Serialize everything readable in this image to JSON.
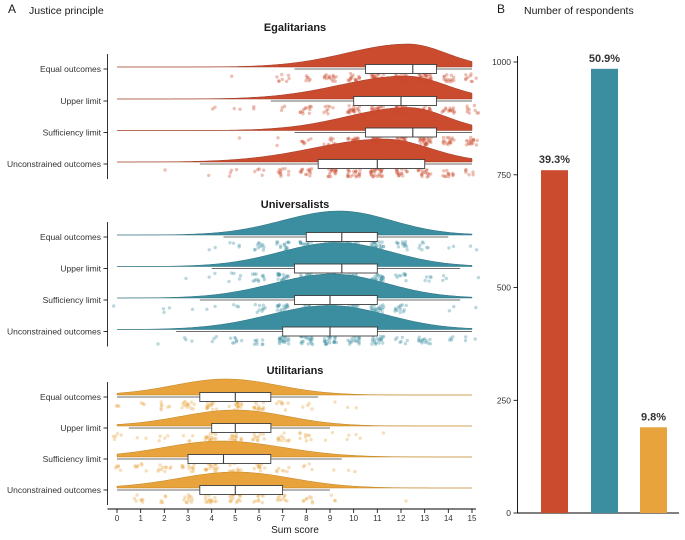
{
  "figure": {
    "panelA": {
      "letter": "A",
      "title": "Justice principle"
    },
    "panelB": {
      "letter": "B",
      "title": "Number of respondents"
    }
  },
  "chart_data": [
    {
      "type": "raincloud",
      "panel": "A",
      "title": "Justice principle",
      "xlabel": "Sum score",
      "xlim": [
        0,
        15
      ],
      "xticks": [
        0,
        1,
        2,
        3,
        4,
        5,
        6,
        7,
        8,
        9,
        10,
        11,
        12,
        13,
        14,
        15
      ],
      "categories": [
        "Equal outcomes",
        "Upper limit",
        "Sufficiency limit",
        "Unconstrained outcomes"
      ],
      "groups": [
        {
          "name": "Egalitarians",
          "color": "#cb4b2f",
          "stroke": "#9e3a24",
          "rows": [
            {
              "category": "Equal outcomes",
              "q1": 10.5,
              "median": 12.5,
              "q3": 13.5,
              "whisker_low": 7.5,
              "whisker_high": 15,
              "peak": 12.3,
              "spread_left": 2.6,
              "spread_right": 1.6,
              "n": 150
            },
            {
              "category": "Upper limit",
              "q1": 10.0,
              "median": 12.0,
              "q3": 13.5,
              "whisker_low": 6.5,
              "whisker_high": 15,
              "peak": 12.2,
              "spread_left": 2.8,
              "spread_right": 1.7,
              "n": 150
            },
            {
              "category": "Sufficiency limit",
              "q1": 10.5,
              "median": 12.5,
              "q3": 13.5,
              "whisker_low": 7.5,
              "whisker_high": 15,
              "peak": 12.3,
              "spread_left": 2.6,
              "spread_right": 1.6,
              "n": 150
            },
            {
              "category": "Unconstrained outcomes",
              "q1": 8.5,
              "median": 11.0,
              "q3": 13.0,
              "whisker_low": 3.5,
              "whisker_high": 15,
              "peak": 11.3,
              "spread_left": 3.0,
              "spread_right": 1.9,
              "n": 150
            }
          ]
        },
        {
          "name": "Universalists",
          "color": "#3b8ea0",
          "stroke": "#2c6f7d",
          "rows": [
            {
              "category": "Equal outcomes",
              "q1": 8.0,
              "median": 9.5,
              "q3": 11.0,
              "whisker_low": 4.5,
              "whisker_high": 14.0,
              "peak": 9.4,
              "spread_left": 2.4,
              "spread_right": 2.2,
              "n": 150
            },
            {
              "category": "Upper limit",
              "q1": 7.5,
              "median": 9.5,
              "q3": 11.0,
              "whisker_low": 4.0,
              "whisker_high": 14.5,
              "peak": 9.3,
              "spread_left": 2.4,
              "spread_right": 2.3,
              "n": 150
            },
            {
              "category": "Sufficiency limit",
              "q1": 7.5,
              "median": 9.0,
              "q3": 11.0,
              "whisker_low": 3.5,
              "whisker_high": 14.5,
              "peak": 9.1,
              "spread_left": 2.5,
              "spread_right": 2.3,
              "n": 150
            },
            {
              "category": "Unconstrained outcomes",
              "q1": 7.0,
              "median": 9.0,
              "q3": 11.0,
              "whisker_low": 2.5,
              "whisker_high": 15.0,
              "peak": 9.0,
              "spread_left": 2.6,
              "spread_right": 2.4,
              "n": 150
            }
          ]
        },
        {
          "name": "Utilitarians",
          "color": "#e8a33c",
          "stroke": "#bf831f",
          "rows": [
            {
              "category": "Equal outcomes",
              "q1": 3.5,
              "median": 5.0,
              "q3": 6.5,
              "whisker_low": 0,
              "whisker_high": 8.5,
              "peak": 4.6,
              "spread_left": 2.2,
              "spread_right": 2.2,
              "n": 85
            },
            {
              "category": "Upper limit",
              "q1": 4.0,
              "median": 5.0,
              "q3": 6.5,
              "whisker_low": 0.5,
              "whisker_high": 9.0,
              "peak": 5.0,
              "spread_left": 2.3,
              "spread_right": 2.2,
              "n": 85
            },
            {
              "category": "Sufficiency limit",
              "q1": 3.0,
              "median": 4.5,
              "q3": 6.5,
              "whisker_low": 0,
              "whisker_high": 9.5,
              "peak": 4.4,
              "spread_left": 2.4,
              "spread_right": 2.6,
              "n": 85
            },
            {
              "category": "Unconstrained outcomes",
              "q1": 3.5,
              "median": 5.0,
              "q3": 7.0,
              "whisker_low": 0,
              "whisker_high": 9.0,
              "peak": 5.0,
              "spread_left": 2.4,
              "spread_right": 2.4,
              "n": 85
            }
          ]
        }
      ]
    },
    {
      "type": "bar",
      "panel": "B",
      "title": "Number of respondents",
      "categories": [
        "Egalitarians",
        "Universalists",
        "Utilitarians"
      ],
      "values": [
        760,
        985,
        190
      ],
      "bar_labels": [
        "39.3%",
        "50.9%",
        "9.8%"
      ],
      "colors": [
        "#cb4b2f",
        "#3b8ea0",
        "#e8a33c"
      ],
      "ylabel": "",
      "ylim": [
        0,
        1050
      ],
      "yticks": [
        0,
        250,
        500,
        750,
        1000
      ],
      "legend": "none"
    }
  ]
}
